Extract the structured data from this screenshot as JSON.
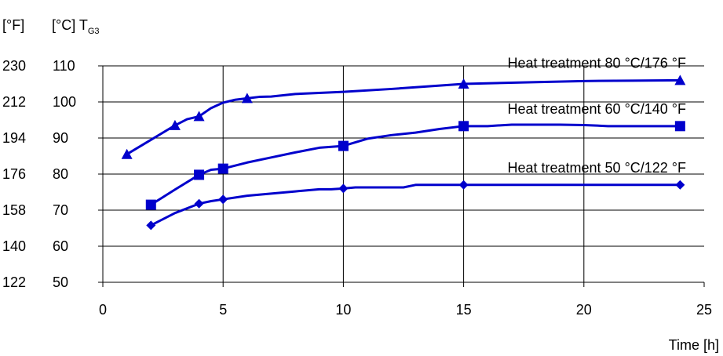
{
  "chart_data": {
    "type": "line",
    "title": "",
    "ylabel_f": "[°F]",
    "ylabel_c_prefix": "[°C] T",
    "ylabel_c_subscript": "G3",
    "xlabel": "Time [h]",
    "xlim": [
      0,
      25
    ],
    "ylim": [
      50,
      110
    ],
    "x_ticks": [
      "0",
      "5",
      "10",
      "15",
      "20",
      "25"
    ],
    "y_ticks_c": [
      "110",
      "100",
      "90",
      "80",
      "70",
      "60",
      "50"
    ],
    "y_ticks_f": [
      "230",
      "212",
      "194",
      "176",
      "158",
      "140",
      "122"
    ],
    "grid": true,
    "line_color": "#0000cc",
    "series": [
      {
        "name": "Heat treatment 80 °C/176 °F",
        "marker": "triangle",
        "x": [
          1,
          3,
          4,
          6,
          15,
          24
        ],
        "y": [
          85.5,
          93.5,
          96,
          101,
          105,
          106
        ],
        "curve_x": [
          1,
          2,
          3,
          3.5,
          4,
          4.5,
          5,
          5.5,
          6,
          6.5,
          7,
          8,
          10,
          12,
          15,
          18,
          20,
          22,
          24
        ],
        "curve_y": [
          85.5,
          89.5,
          93.5,
          95.2,
          96,
          98.3,
          99.8,
          100.6,
          101,
          101.4,
          101.5,
          102.2,
          102.8,
          103.6,
          105,
          105.5,
          105.8,
          105.9,
          106
        ]
      },
      {
        "name": "Heat treatment 60 °C/140 °F",
        "marker": "square",
        "x": [
          2,
          4,
          5,
          10,
          15,
          24
        ],
        "y": [
          71.5,
          79.8,
          81.5,
          87.8,
          93.3,
          93.3
        ],
        "curve_x": [
          2,
          3,
          4,
          4.5,
          5,
          6,
          7,
          8,
          9,
          10,
          11,
          12,
          13,
          14,
          15,
          16,
          17,
          18,
          19,
          20,
          21,
          22,
          24
        ],
        "curve_y": [
          71.5,
          75.7,
          79.8,
          81.2,
          81.5,
          83.2,
          84.6,
          86,
          87.3,
          87.8,
          89.8,
          90.8,
          91.5,
          92.5,
          93.3,
          93.3,
          93.7,
          93.7,
          93.7,
          93.6,
          93.3,
          93.3,
          93.3
        ]
      },
      {
        "name": "Heat treatment 50 °C/122 °F",
        "marker": "diamond",
        "x": [
          2,
          4,
          5,
          10,
          15,
          24
        ],
        "y": [
          65.8,
          71.8,
          73,
          76,
          77,
          77
        ],
        "curve_x": [
          2,
          3,
          4,
          4.5,
          5,
          6,
          7,
          8,
          9,
          9.5,
          10,
          10.5,
          12,
          12.5,
          13,
          15,
          20,
          24
        ],
        "curve_y": [
          65.8,
          69.2,
          71.8,
          72.5,
          73,
          74,
          74.6,
          75.2,
          75.8,
          75.8,
          76,
          76.3,
          76.3,
          76.3,
          77,
          77,
          77,
          77
        ]
      }
    ]
  }
}
